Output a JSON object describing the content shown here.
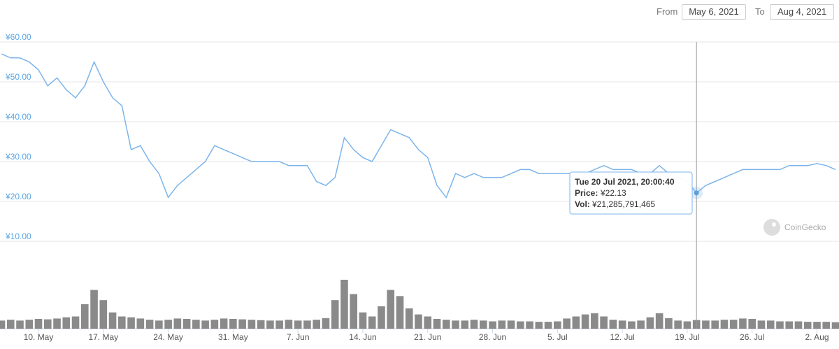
{
  "chart_data": {
    "type": "line",
    "range_from_label": "From",
    "range_from": "May 6, 2021",
    "range_to_label": "To",
    "range_to": "Aug 4, 2021",
    "watermark": "CoinGecko",
    "x": [
      "2021-05-06",
      "2021-05-07",
      "2021-05-08",
      "2021-05-09",
      "2021-05-10",
      "2021-05-11",
      "2021-05-12",
      "2021-05-13",
      "2021-05-14",
      "2021-05-15",
      "2021-05-16",
      "2021-05-17",
      "2021-05-18",
      "2021-05-19",
      "2021-05-20",
      "2021-05-21",
      "2021-05-22",
      "2021-05-23",
      "2021-05-24",
      "2021-05-25",
      "2021-05-26",
      "2021-05-27",
      "2021-05-28",
      "2021-05-29",
      "2021-05-30",
      "2021-05-31",
      "2021-06-01",
      "2021-06-02",
      "2021-06-03",
      "2021-06-04",
      "2021-06-05",
      "2021-06-06",
      "2021-06-07",
      "2021-06-08",
      "2021-06-09",
      "2021-06-10",
      "2021-06-11",
      "2021-06-12",
      "2021-06-13",
      "2021-06-14",
      "2021-06-15",
      "2021-06-16",
      "2021-06-17",
      "2021-06-18",
      "2021-06-19",
      "2021-06-20",
      "2021-06-21",
      "2021-06-22",
      "2021-06-23",
      "2021-06-24",
      "2021-06-25",
      "2021-06-26",
      "2021-06-27",
      "2021-06-28",
      "2021-06-29",
      "2021-06-30",
      "2021-07-01",
      "2021-07-02",
      "2021-07-03",
      "2021-07-04",
      "2021-07-05",
      "2021-07-06",
      "2021-07-07",
      "2021-07-08",
      "2021-07-09",
      "2021-07-10",
      "2021-07-11",
      "2021-07-12",
      "2021-07-13",
      "2021-07-14",
      "2021-07-15",
      "2021-07-16",
      "2021-07-17",
      "2021-07-18",
      "2021-07-19",
      "2021-07-20",
      "2021-07-21",
      "2021-07-22",
      "2021-07-23",
      "2021-07-24",
      "2021-07-25",
      "2021-07-26",
      "2021-07-27",
      "2021-07-28",
      "2021-07-29",
      "2021-07-30",
      "2021-07-31",
      "2021-08-01",
      "2021-08-02",
      "2021-08-03",
      "2021-08-04"
    ],
    "series": [
      {
        "name": "Price",
        "type": "line",
        "axis": "y",
        "color": "#7cb5ec",
        "values": [
          57,
          56,
          56,
          55,
          53,
          49,
          51,
          48,
          46,
          49,
          55,
          50,
          46,
          44,
          33,
          34,
          30,
          27,
          21,
          24,
          26,
          28,
          30,
          34,
          33,
          32,
          31,
          30,
          30,
          30,
          30,
          29,
          29,
          29,
          25,
          24,
          26,
          36,
          33,
          31,
          30,
          34,
          38,
          37,
          36,
          33,
          31,
          24,
          21,
          27,
          26,
          27,
          26,
          26,
          26,
          27,
          28,
          28,
          27,
          27,
          27,
          27,
          27,
          27,
          28,
          29,
          28,
          28,
          28,
          27,
          27,
          29,
          27,
          26,
          25,
          22.13,
          24,
          25,
          26,
          27,
          28,
          28,
          28,
          28,
          28,
          29,
          29,
          29,
          29.5,
          29,
          28
        ]
      },
      {
        "name": "Volume",
        "type": "bar",
        "axis": "y2",
        "color": "#8a8a8a",
        "values": [
          20,
          22,
          20,
          22,
          24,
          23,
          25,
          28,
          30,
          60,
          95,
          70,
          40,
          30,
          28,
          25,
          22,
          20,
          22,
          25,
          24,
          22,
          20,
          22,
          25,
          24,
          23,
          22,
          21,
          20,
          20,
          22,
          20,
          20,
          22,
          26,
          70,
          120,
          85,
          40,
          30,
          55,
          95,
          80,
          50,
          35,
          30,
          24,
          22,
          20,
          20,
          22,
          20,
          18,
          20,
          20,
          18,
          18,
          17,
          17,
          18,
          25,
          30,
          35,
          38,
          30,
          22,
          20,
          18,
          20,
          28,
          38,
          26,
          20,
          18,
          21.3,
          20,
          20,
          22,
          22,
          25,
          24,
          20,
          20,
          18,
          18,
          18,
          17,
          17,
          17,
          16
        ]
      }
    ],
    "xlim": [
      "2021-05-06",
      "2021-08-04"
    ],
    "xticks": [
      {
        "value": "2021-05-10",
        "label": "10. May"
      },
      {
        "value": "2021-05-17",
        "label": "17. May"
      },
      {
        "value": "2021-05-24",
        "label": "24. May"
      },
      {
        "value": "2021-05-31",
        "label": "31. May"
      },
      {
        "value": "2021-06-07",
        "label": "7. Jun"
      },
      {
        "value": "2021-06-14",
        "label": "14. Jun"
      },
      {
        "value": "2021-06-21",
        "label": "21. Jun"
      },
      {
        "value": "2021-06-28",
        "label": "28. Jun"
      },
      {
        "value": "2021-07-05",
        "label": "5. Jul"
      },
      {
        "value": "2021-07-12",
        "label": "12. Jul"
      },
      {
        "value": "2021-07-19",
        "label": "19. Jul"
      },
      {
        "value": "2021-07-26",
        "label": "26. Jul"
      },
      {
        "value": "2021-08-02",
        "label": "2. Aug"
      }
    ],
    "ylim": [
      10,
      60
    ],
    "yticks": [
      {
        "value": 10,
        "label": "¥10.00"
      },
      {
        "value": 20,
        "label": "¥20.00"
      },
      {
        "value": 30,
        "label": "¥30.00"
      },
      {
        "value": 40,
        "label": "¥40.00"
      },
      {
        "value": 50,
        "label": "¥50.00"
      },
      {
        "value": 60,
        "label": "¥60.00"
      }
    ],
    "y2lim": [
      0,
      180
    ],
    "grid": true,
    "tooltip": {
      "index": 75,
      "date": "Tue 20 Jul 2021, 20:00:40",
      "price_label": "Price:",
      "price": "¥22.13",
      "vol_label": "Vol:",
      "vol": "¥21,285,791,465"
    }
  }
}
